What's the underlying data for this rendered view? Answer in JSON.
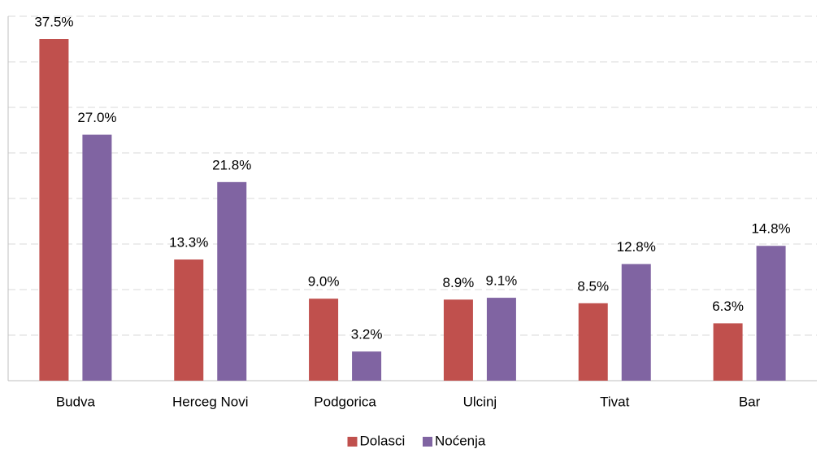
{
  "chart_data": {
    "type": "bar",
    "categories": [
      "Budva",
      "Herceg Novi",
      "Podgorica",
      "Ulcinj",
      "Tivat",
      "Bar"
    ],
    "series": [
      {
        "name": "Dolasci",
        "color": "#c0504d",
        "values": [
          37.5,
          13.3,
          9.0,
          8.9,
          8.5,
          6.3
        ],
        "value_labels": [
          "37.5%",
          "13.3%",
          "9.0%",
          "8.9%",
          "8.5%",
          "6.3%"
        ]
      },
      {
        "name": "Noćenja",
        "color": "#8064a2",
        "values": [
          27.0,
          21.8,
          3.2,
          9.1,
          12.8,
          14.8
        ],
        "value_labels": [
          "27.0%",
          "21.8%",
          "3.2%",
          "9.1%",
          "12.8%",
          "14.8%"
        ]
      }
    ],
    "ylim": [
      0,
      40
    ],
    "yticks": [
      0,
      5,
      10,
      15,
      20,
      25,
      30,
      35,
      40
    ],
    "grid": true,
    "legend": "bottom"
  }
}
